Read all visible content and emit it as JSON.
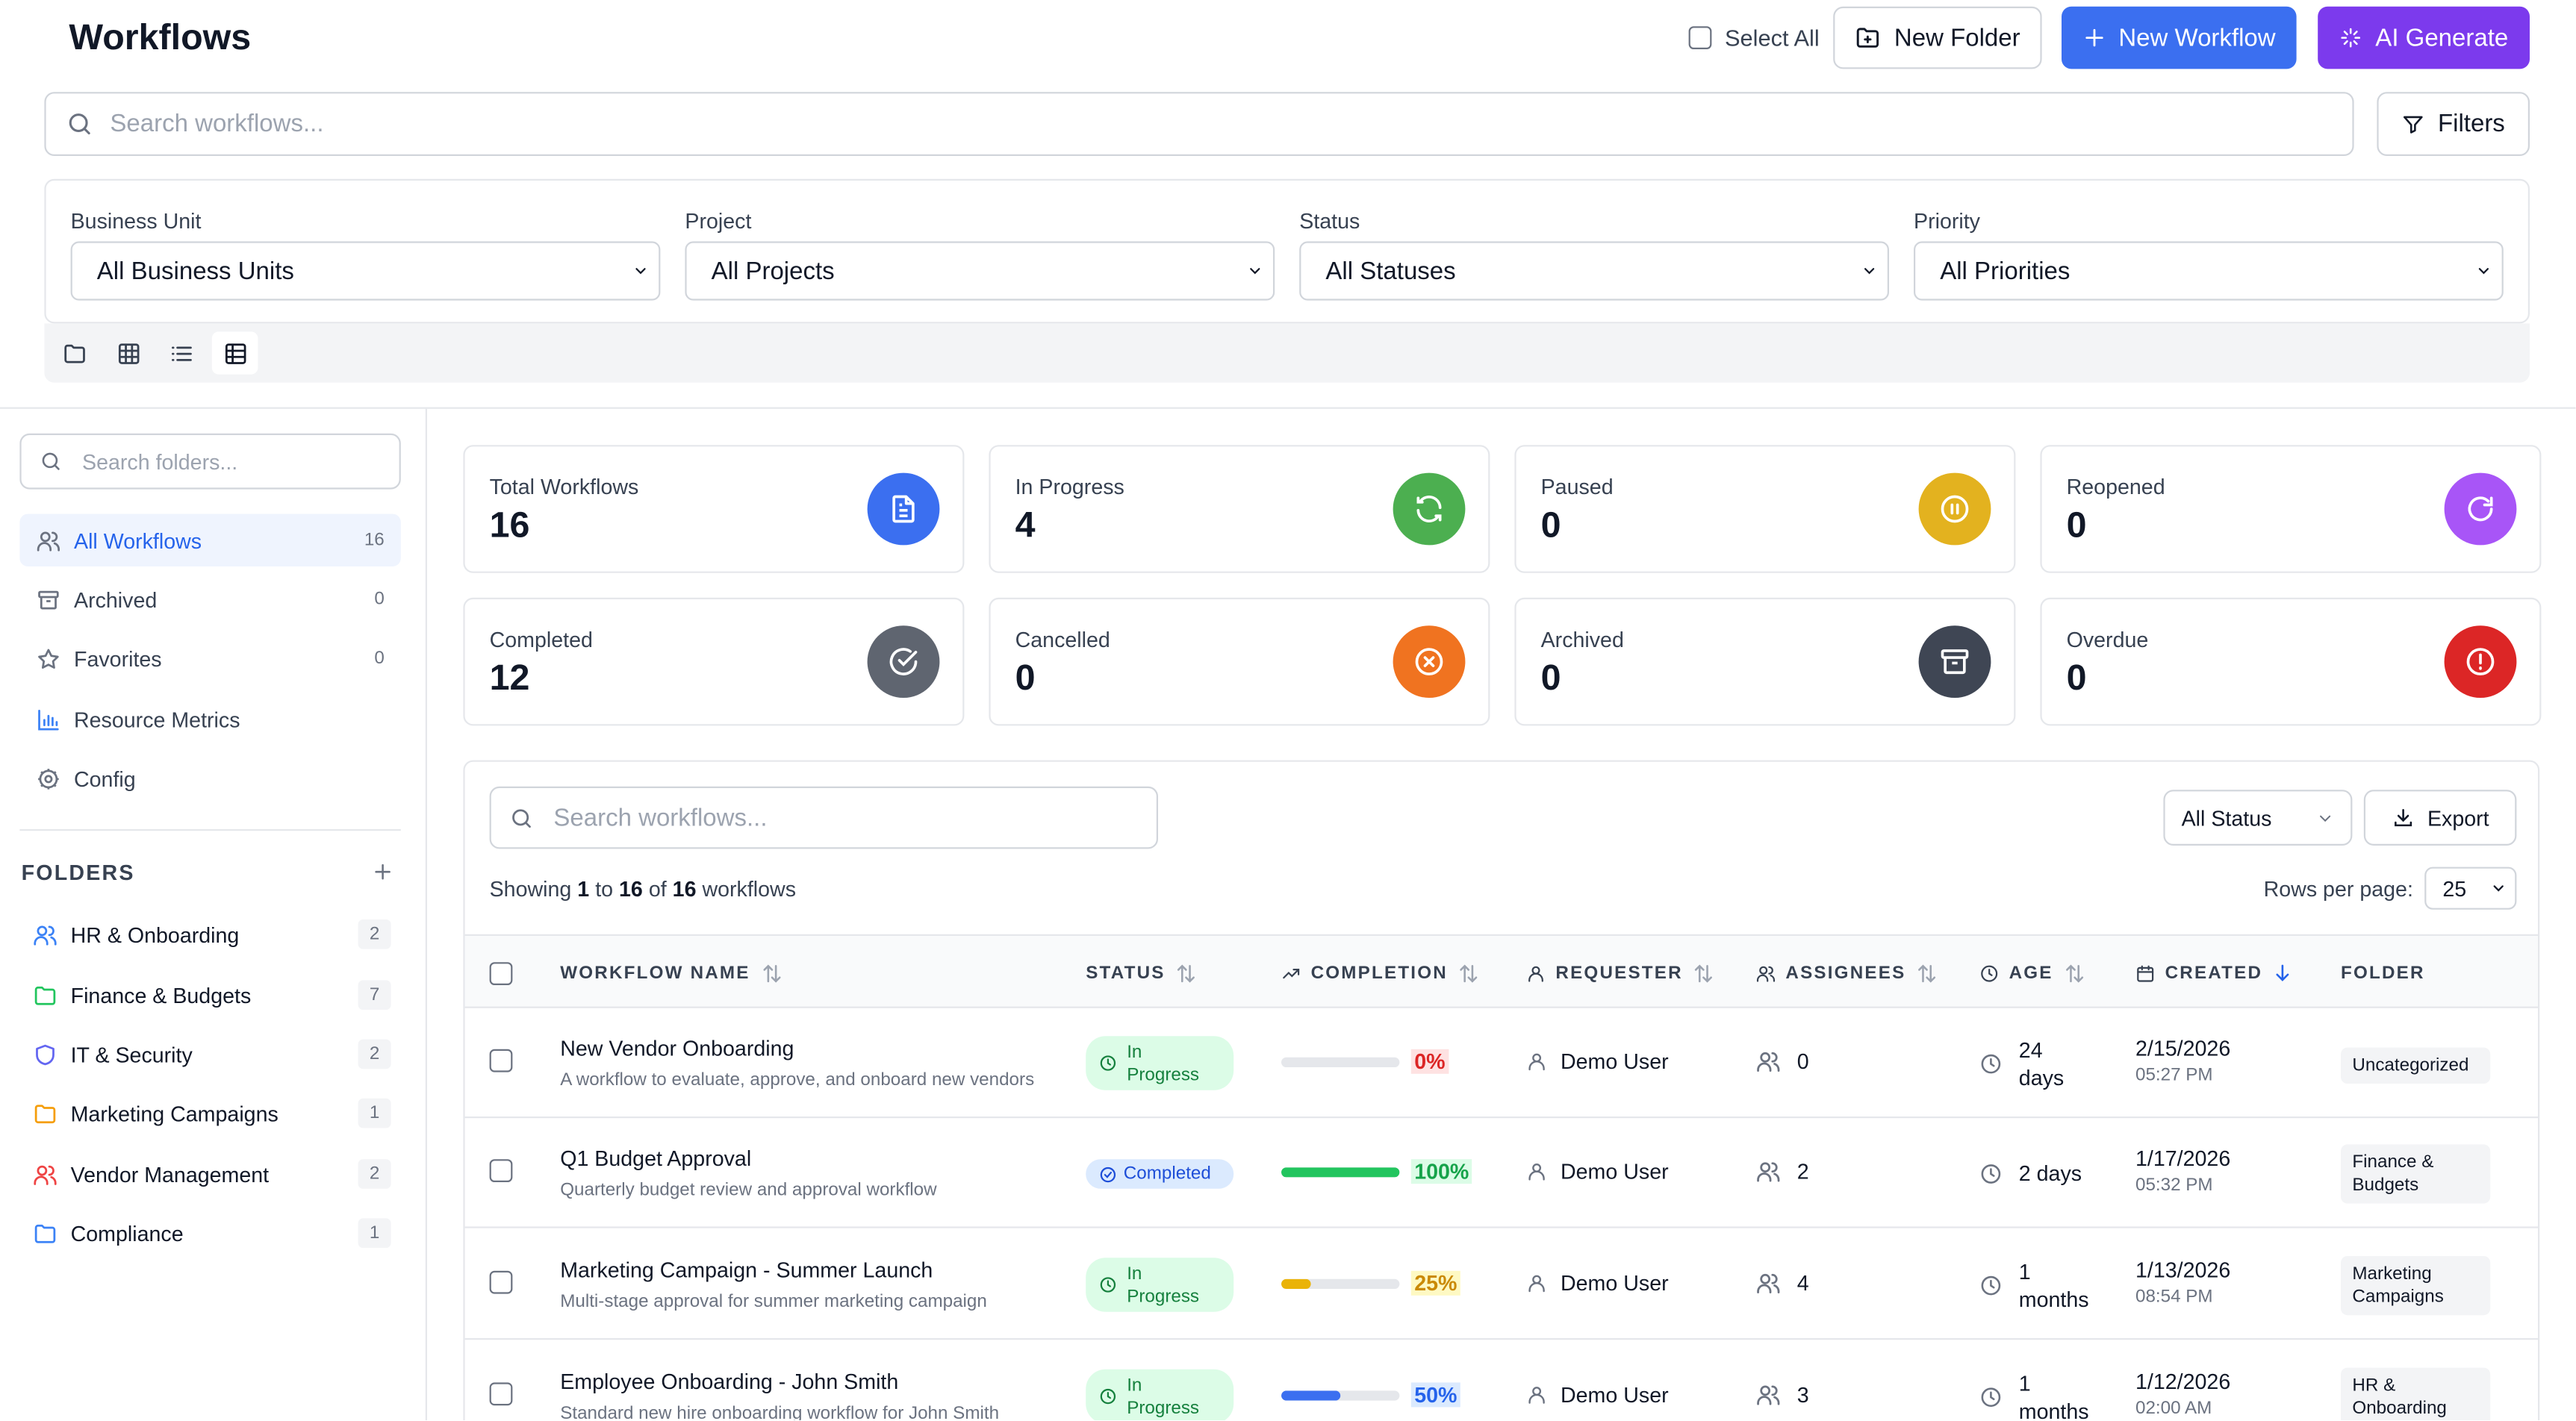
{
  "header": {
    "title": "Workflows",
    "select_all": "Select All",
    "new_folder": "New Folder",
    "new_workflow": "New Workflow",
    "ai_generate": "AI Generate"
  },
  "search": {
    "placeholder": "Search workflows..."
  },
  "filters_button": "Filters",
  "filters": [
    {
      "label": "Business Unit",
      "value": "All Business Units"
    },
    {
      "label": "Project",
      "value": "All Projects"
    },
    {
      "label": "Status",
      "value": "All Statuses"
    },
    {
      "label": "Priority",
      "value": "All Priorities"
    }
  ],
  "sidebar": {
    "search_placeholder": "Search folders...",
    "nav": [
      {
        "label": "All Workflows",
        "count": "16",
        "icon": "users-icon"
      },
      {
        "label": "Archived",
        "count": "0",
        "icon": "archive-icon"
      },
      {
        "label": "Favorites",
        "count": "0",
        "icon": "star-icon"
      },
      {
        "label": "Resource Metrics",
        "count": "",
        "icon": "bar-chart-icon"
      },
      {
        "label": "Config",
        "count": "",
        "icon": "gear-icon"
      }
    ],
    "folders_title": "FOLDERS",
    "folders": [
      {
        "label": "HR & Onboarding",
        "count": "2",
        "color": "#3b82f6",
        "icon": "users-icon"
      },
      {
        "label": "Finance & Budgets",
        "count": "7",
        "color": "#22c55e",
        "icon": "folder-icon"
      },
      {
        "label": "IT & Security",
        "count": "2",
        "color": "#6366f1",
        "icon": "shield-icon"
      },
      {
        "label": "Marketing Campaigns",
        "count": "1",
        "color": "#f59e0b",
        "icon": "folder-icon"
      },
      {
        "label": "Vendor Management",
        "count": "2",
        "color": "#ef4444",
        "icon": "users-icon"
      },
      {
        "label": "Compliance",
        "count": "1",
        "color": "#3b82f6",
        "icon": "folder-icon"
      }
    ]
  },
  "stats": [
    {
      "label": "Total Workflows",
      "value": "16",
      "color": "#3b6ff0",
      "icon": "document-icon"
    },
    {
      "label": "In Progress",
      "value": "4",
      "color": "#4caf50",
      "icon": "refresh-icon"
    },
    {
      "label": "Paused",
      "value": "0",
      "color": "#e3b21f",
      "icon": "pause-icon"
    },
    {
      "label": "Reopened",
      "value": "0",
      "color": "#a855f7",
      "icon": "rotate-icon"
    },
    {
      "label": "Completed",
      "value": "12",
      "color": "#5f6570",
      "icon": "check-circle-icon"
    },
    {
      "label": "Cancelled",
      "value": "0",
      "color": "#f07320",
      "icon": "x-circle-icon"
    },
    {
      "label": "Archived",
      "value": "0",
      "color": "#3f4654",
      "icon": "archive-icon"
    },
    {
      "label": "Overdue",
      "value": "0",
      "color": "#dc2626",
      "icon": "alert-circle-icon"
    }
  ],
  "table": {
    "search_placeholder": "Search workflows...",
    "status_filter": "All Status",
    "export": "Export",
    "showing": {
      "prefix": "Showing",
      "from": "1",
      "to_word": "to",
      "to": "16",
      "of_word": "of",
      "total": "16",
      "suffix": "workflows"
    },
    "rows_per_page_label": "Rows per page:",
    "rows_per_page": "25",
    "columns": [
      "WORKFLOW NAME",
      "STATUS",
      "COMPLETION",
      "REQUESTER",
      "ASSIGNEES",
      "AGE",
      "CREATED",
      "FOLDER"
    ],
    "rows": [
      {
        "name": "New Vendor Onboarding",
        "description": "A workflow to evaluate, approve, and onboard new vendors",
        "status": "In Progress",
        "completion": 0,
        "completion_label": "0%",
        "requester": "Demo User",
        "assignees": "0",
        "age": [
          "24",
          "days"
        ],
        "created_date": "2/15/2026",
        "created_time": "05:27 PM",
        "folder": "Uncategorized"
      },
      {
        "name": "Q1 Budget Approval",
        "description": "Quarterly budget review and approval workflow",
        "status": "Completed",
        "completion": 100,
        "completion_label": "100%",
        "requester": "Demo User",
        "assignees": "2",
        "age": [
          "2 days"
        ],
        "created_date": "1/17/2026",
        "created_time": "05:32 PM",
        "folder": "Finance & Budgets"
      },
      {
        "name": "Marketing Campaign - Summer Launch",
        "description": "Multi-stage approval for summer marketing campaign",
        "status": "In Progress",
        "completion": 25,
        "completion_label": "25%",
        "requester": "Demo User",
        "assignees": "4",
        "age": [
          "1",
          "months"
        ],
        "created_date": "1/13/2026",
        "created_time": "08:54 PM",
        "folder": "Marketing Campaigns"
      },
      {
        "name": "Employee Onboarding - John Smith",
        "description": "Standard new hire onboarding workflow for John Smith",
        "status": "In Progress",
        "completion": 50,
        "completion_label": "50%",
        "requester": "Demo User",
        "assignees": "3",
        "age": [
          "1",
          "months"
        ],
        "created_date": "1/12/2026",
        "created_time": "02:00 AM",
        "folder": "HR & Onboarding"
      }
    ]
  }
}
